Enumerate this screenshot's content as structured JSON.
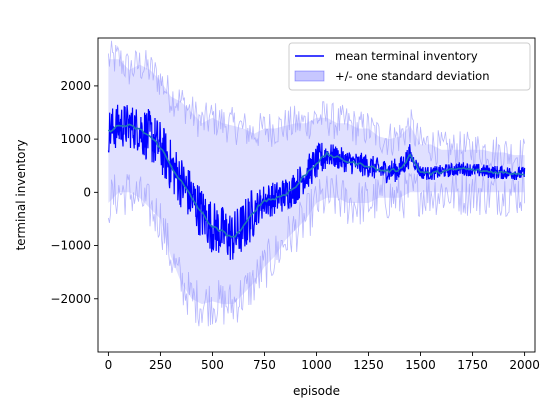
{
  "chart_data": {
    "type": "line",
    "xlabel": "episode",
    "ylabel": "terminal inventory",
    "xlim": [
      -50,
      2050
    ],
    "ylim": [
      -3000,
      2900
    ],
    "xticks": [
      0,
      250,
      500,
      750,
      1000,
      1250,
      1500,
      1750,
      2000
    ],
    "yticks": [
      -2000,
      -1000,
      0,
      1000,
      2000
    ],
    "xtick_labels": [
      "0",
      "250",
      "500",
      "750",
      "1000",
      "1250",
      "1500",
      "1750",
      "2000"
    ],
    "ytick_labels": [
      "−2000",
      "−1000",
      "0",
      "1000",
      "2000"
    ],
    "grid": false,
    "legend_position": "upper-right",
    "colors": {
      "mean": "#0000ff",
      "band": "#0000ff",
      "trend": "#1f77b4"
    },
    "series": [
      {
        "name": "mean terminal inventory",
        "kind": "line",
        "x": [
          0,
          50,
          100,
          150,
          200,
          250,
          300,
          350,
          400,
          450,
          500,
          550,
          600,
          650,
          700,
          750,
          800,
          850,
          900,
          950,
          1000,
          1050,
          1100,
          1150,
          1200,
          1250,
          1300,
          1350,
          1400,
          1450,
          1500,
          1550,
          1600,
          1650,
          1700,
          1750,
          1800,
          1850,
          1900,
          1950,
          2000
        ],
        "y": [
          1150,
          1250,
          1250,
          1180,
          1050,
          850,
          500,
          200,
          -100,
          -400,
          -650,
          -750,
          -850,
          -650,
          -350,
          -150,
          -120,
          -30,
          100,
          350,
          550,
          720,
          650,
          580,
          530,
          500,
          420,
          400,
          430,
          700,
          380,
          350,
          390,
          420,
          450,
          420,
          400,
          380,
          370,
          360,
          350
        ]
      },
      {
        "name": "+/- one standard deviation",
        "kind": "band",
        "x": [
          0,
          50,
          100,
          150,
          200,
          250,
          300,
          350,
          400,
          450,
          500,
          550,
          600,
          650,
          700,
          750,
          800,
          850,
          900,
          950,
          1000,
          1050,
          1100,
          1150,
          1200,
          1250,
          1300,
          1350,
          1400,
          1450,
          1500,
          1550,
          1600,
          1650,
          1700,
          1750,
          1800,
          1850,
          1900,
          1950,
          2000
        ],
        "lower": [
          -200,
          0,
          0,
          -100,
          -300,
          -500,
          -1200,
          -1700,
          -2000,
          -2100,
          -2050,
          -2100,
          -2100,
          -1900,
          -1700,
          -1400,
          -1200,
          -900,
          -700,
          -500,
          -200,
          -100,
          -100,
          -200,
          -200,
          -200,
          -100,
          -100,
          -100,
          0,
          0,
          0,
          0,
          0,
          0,
          0,
          0,
          0,
          0,
          0,
          0
        ],
        "upper": [
          2500,
          2500,
          2300,
          2400,
          2300,
          2100,
          1800,
          1700,
          1500,
          1300,
          1400,
          1300,
          1250,
          1200,
          1100,
          1200,
          1200,
          1250,
          1300,
          1300,
          1400,
          1400,
          1300,
          1300,
          1200,
          1200,
          1050,
          1000,
          1050,
          1250,
          900,
          900,
          800,
          800,
          800,
          800,
          800,
          750,
          750,
          700,
          700
        ]
      }
    ]
  }
}
